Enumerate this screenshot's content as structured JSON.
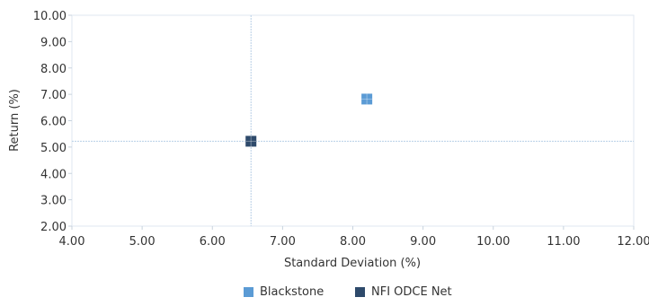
{
  "chart_data": {
    "type": "scatter",
    "title": "",
    "xlabel": "Standard Deviation (%)",
    "ylabel": "Return (%)",
    "xlim": [
      4.0,
      12.0
    ],
    "ylim": [
      2.0,
      10.0
    ],
    "xticks": [
      "4.00",
      "5.00",
      "6.00",
      "7.00",
      "8.00",
      "9.00",
      "10.00",
      "11.00",
      "12.00"
    ],
    "yticks": [
      "2.00",
      "3.00",
      "4.00",
      "5.00",
      "6.00",
      "7.00",
      "8.00",
      "9.00",
      "10.00"
    ],
    "grid": false,
    "legend_position": "bottom",
    "series": [
      {
        "name": "Blackstone",
        "x": 8.2,
        "y": 6.82,
        "color": "#5b9bd5"
      },
      {
        "name": "NFI ODCE Net",
        "x": 6.55,
        "y": 5.22,
        "color": "#2e4a6b"
      }
    ],
    "reference_lines": {
      "x": 6.55,
      "y": 5.22
    }
  }
}
